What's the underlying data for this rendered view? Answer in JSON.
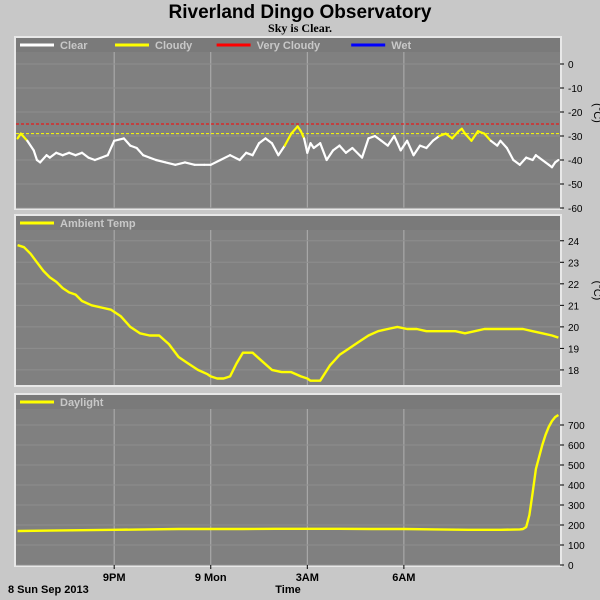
{
  "header": {
    "title": "Riverland Dingo Observatory",
    "subtitle": "Sky is Clear."
  },
  "footer": {
    "date_label": "8 Sun Sep 2013",
    "xlabel": "Time"
  },
  "colors": {
    "page_bg": "#c8c8c8",
    "panel_bg": "#808080",
    "grid": "#b0b0b0",
    "clear": "#ffffff",
    "cloudy": "#ffff00",
    "very_cloudy": "#ff0000",
    "wet": "#0000ff",
    "ambient": "#ffff00",
    "daylight": "#ffff00"
  },
  "chart_data": [
    {
      "type": "line",
      "legend": [
        {
          "name": "Clear",
          "color": "#ffffff"
        },
        {
          "name": "Cloudy",
          "color": "#ffff00"
        },
        {
          "name": "Very Cloudy",
          "color": "#ff0000"
        },
        {
          "name": "Wet",
          "color": "#0000ff"
        }
      ],
      "unit": "(°C)",
      "ylim": [
        -60,
        5
      ],
      "yticks": [
        0,
        -10,
        -20,
        -30,
        -40,
        -50,
        -60
      ],
      "ytick_labels": [
        "0",
        "-10",
        "-20",
        "-30",
        "-40",
        "-50",
        "-60"
      ],
      "thresholds": [
        {
          "value": -25,
          "color": "#ff0000"
        },
        {
          "value": -29,
          "color": "#ffff00"
        }
      ],
      "cloudy_above": -30,
      "x": [
        18.0,
        18.1,
        18.3,
        18.5,
        18.6,
        18.7,
        18.9,
        19.0,
        19.2,
        19.4,
        19.6,
        19.8,
        20.0,
        20.2,
        20.4,
        20.6,
        20.8,
        21.0,
        21.3,
        21.5,
        21.7,
        21.9,
        22.1,
        22.3,
        22.6,
        22.9,
        23.2,
        23.5,
        23.8,
        24.0,
        24.3,
        24.6,
        24.9,
        25.1,
        25.3,
        25.5,
        25.7,
        25.9,
        26.1,
        26.3,
        26.5,
        26.7,
        26.8,
        26.9,
        27.0,
        27.1,
        27.2,
        27.4,
        27.6,
        27.8,
        28.0,
        28.2,
        28.4,
        28.7,
        28.9,
        29.1,
        29.3,
        29.5,
        29.7,
        29.9,
        30.1,
        30.3,
        30.5,
        30.7,
        30.9,
        31.1,
        31.3,
        31.5,
        31.7,
        31.8,
        31.9,
        32.1,
        32.3,
        32.5,
        32.7,
        32.9,
        33.0,
        33.2,
        33.4,
        33.6,
        33.8,
        34.0,
        34.1,
        34.2,
        34.3,
        34.4,
        34.5,
        34.6,
        34.7,
        34.8
      ],
      "series": [
        {
          "values": [
            -31,
            -29,
            -32,
            -36,
            -40,
            -41,
            -38,
            -39,
            -37,
            -38,
            -37,
            -38,
            -37,
            -39,
            -40,
            -39,
            -38,
            -32,
            -31,
            -34,
            -35,
            -38,
            -39,
            -40,
            -41,
            -42,
            -41,
            -42,
            -42,
            -42,
            -40,
            -38,
            -40,
            -37,
            -38,
            -33,
            -31,
            -33,
            -38,
            -34,
            -29,
            -26,
            -28,
            -31,
            -37,
            -33,
            -35,
            -33,
            -40,
            -36,
            -34,
            -37,
            -35,
            -39,
            -31,
            -30,
            -32,
            -34,
            -30,
            -36,
            -32,
            -38,
            -34,
            -35,
            -32,
            -30,
            -29,
            -31,
            -28,
            -27,
            -29,
            -32,
            -28,
            -29,
            -32,
            -34,
            -32,
            -35,
            -40,
            -42,
            -39,
            -40,
            -38,
            -39,
            -40,
            -41,
            -42,
            -43,
            -41,
            -40
          ]
        }
      ]
    },
    {
      "type": "line",
      "legend": [
        {
          "name": "Ambient Temp",
          "color": "#ffff00"
        }
      ],
      "unit": "(°C)",
      "ylim": [
        17.3,
        24.5
      ],
      "yticks": [
        18,
        19,
        20,
        21,
        22,
        23,
        24
      ],
      "ytick_labels": [
        "18",
        "19",
        "20",
        "21",
        "22",
        "23",
        "24"
      ],
      "x": [
        18.0,
        18.2,
        18.4,
        18.6,
        18.8,
        19.0,
        19.2,
        19.4,
        19.6,
        19.8,
        20.0,
        20.3,
        20.6,
        20.9,
        21.2,
        21.5,
        21.8,
        22.1,
        22.4,
        22.7,
        23.0,
        23.3,
        23.6,
        23.9,
        24.0,
        24.2,
        24.4,
        24.6,
        24.8,
        25.0,
        25.3,
        25.6,
        25.9,
        26.2,
        26.5,
        26.8,
        27.0,
        27.1,
        27.2,
        27.4,
        27.7,
        28.0,
        28.3,
        28.6,
        28.9,
        29.2,
        29.5,
        29.8,
        30.1,
        30.4,
        30.7,
        31.0,
        31.3,
        31.6,
        31.9,
        32.2,
        32.5,
        32.8,
        33.1,
        33.4,
        33.7,
        34.0,
        34.3,
        34.6,
        34.8
      ],
      "series": [
        {
          "values": [
            23.8,
            23.7,
            23.4,
            23.0,
            22.6,
            22.3,
            22.1,
            21.8,
            21.6,
            21.5,
            21.2,
            21.0,
            20.9,
            20.8,
            20.5,
            20.0,
            19.7,
            19.6,
            19.6,
            19.2,
            18.6,
            18.3,
            18.0,
            17.8,
            17.7,
            17.6,
            17.6,
            17.7,
            18.3,
            18.8,
            18.8,
            18.4,
            18.0,
            17.9,
            17.9,
            17.7,
            17.6,
            17.5,
            17.5,
            17.5,
            18.2,
            18.7,
            19.0,
            19.3,
            19.6,
            19.8,
            19.9,
            20.0,
            19.9,
            19.9,
            19.8,
            19.8,
            19.8,
            19.8,
            19.7,
            19.8,
            19.9,
            19.9,
            19.9,
            19.9,
            19.9,
            19.8,
            19.7,
            19.6,
            19.5
          ]
        }
      ]
    },
    {
      "type": "line",
      "legend": [
        {
          "name": "Daylight",
          "color": "#ffff00"
        }
      ],
      "unit": "",
      "ylim": [
        0,
        780
      ],
      "yticks": [
        0,
        100,
        200,
        300,
        400,
        500,
        600,
        700
      ],
      "ytick_labels": [
        "0",
        "100",
        "200",
        "300",
        "400",
        "500",
        "600",
        "700"
      ],
      "x": [
        18.0,
        19.0,
        20.0,
        21.0,
        22.0,
        23.0,
        24.0,
        25.0,
        26.0,
        27.0,
        28.0,
        29.0,
        30.0,
        31.0,
        32.0,
        33.0,
        33.6,
        33.7,
        33.8,
        33.9,
        34.0,
        34.1,
        34.2,
        34.3,
        34.4,
        34.5,
        34.6,
        34.7,
        34.8
      ],
      "series": [
        {
          "values": [
            170,
            172,
            174,
            176,
            178,
            180,
            180,
            180,
            181,
            181,
            181,
            180,
            180,
            178,
            176,
            176,
            178,
            180,
            190,
            250,
            360,
            480,
            540,
            600,
            650,
            690,
            720,
            740,
            750
          ]
        }
      ]
    }
  ],
  "x_axis": {
    "ticks": [
      21,
      24,
      27,
      30
    ],
    "tick_labels": [
      "9PM",
      "9 Mon",
      "3AM",
      "6AM"
    ],
    "xlim": [
      17.95,
      34.85
    ]
  }
}
